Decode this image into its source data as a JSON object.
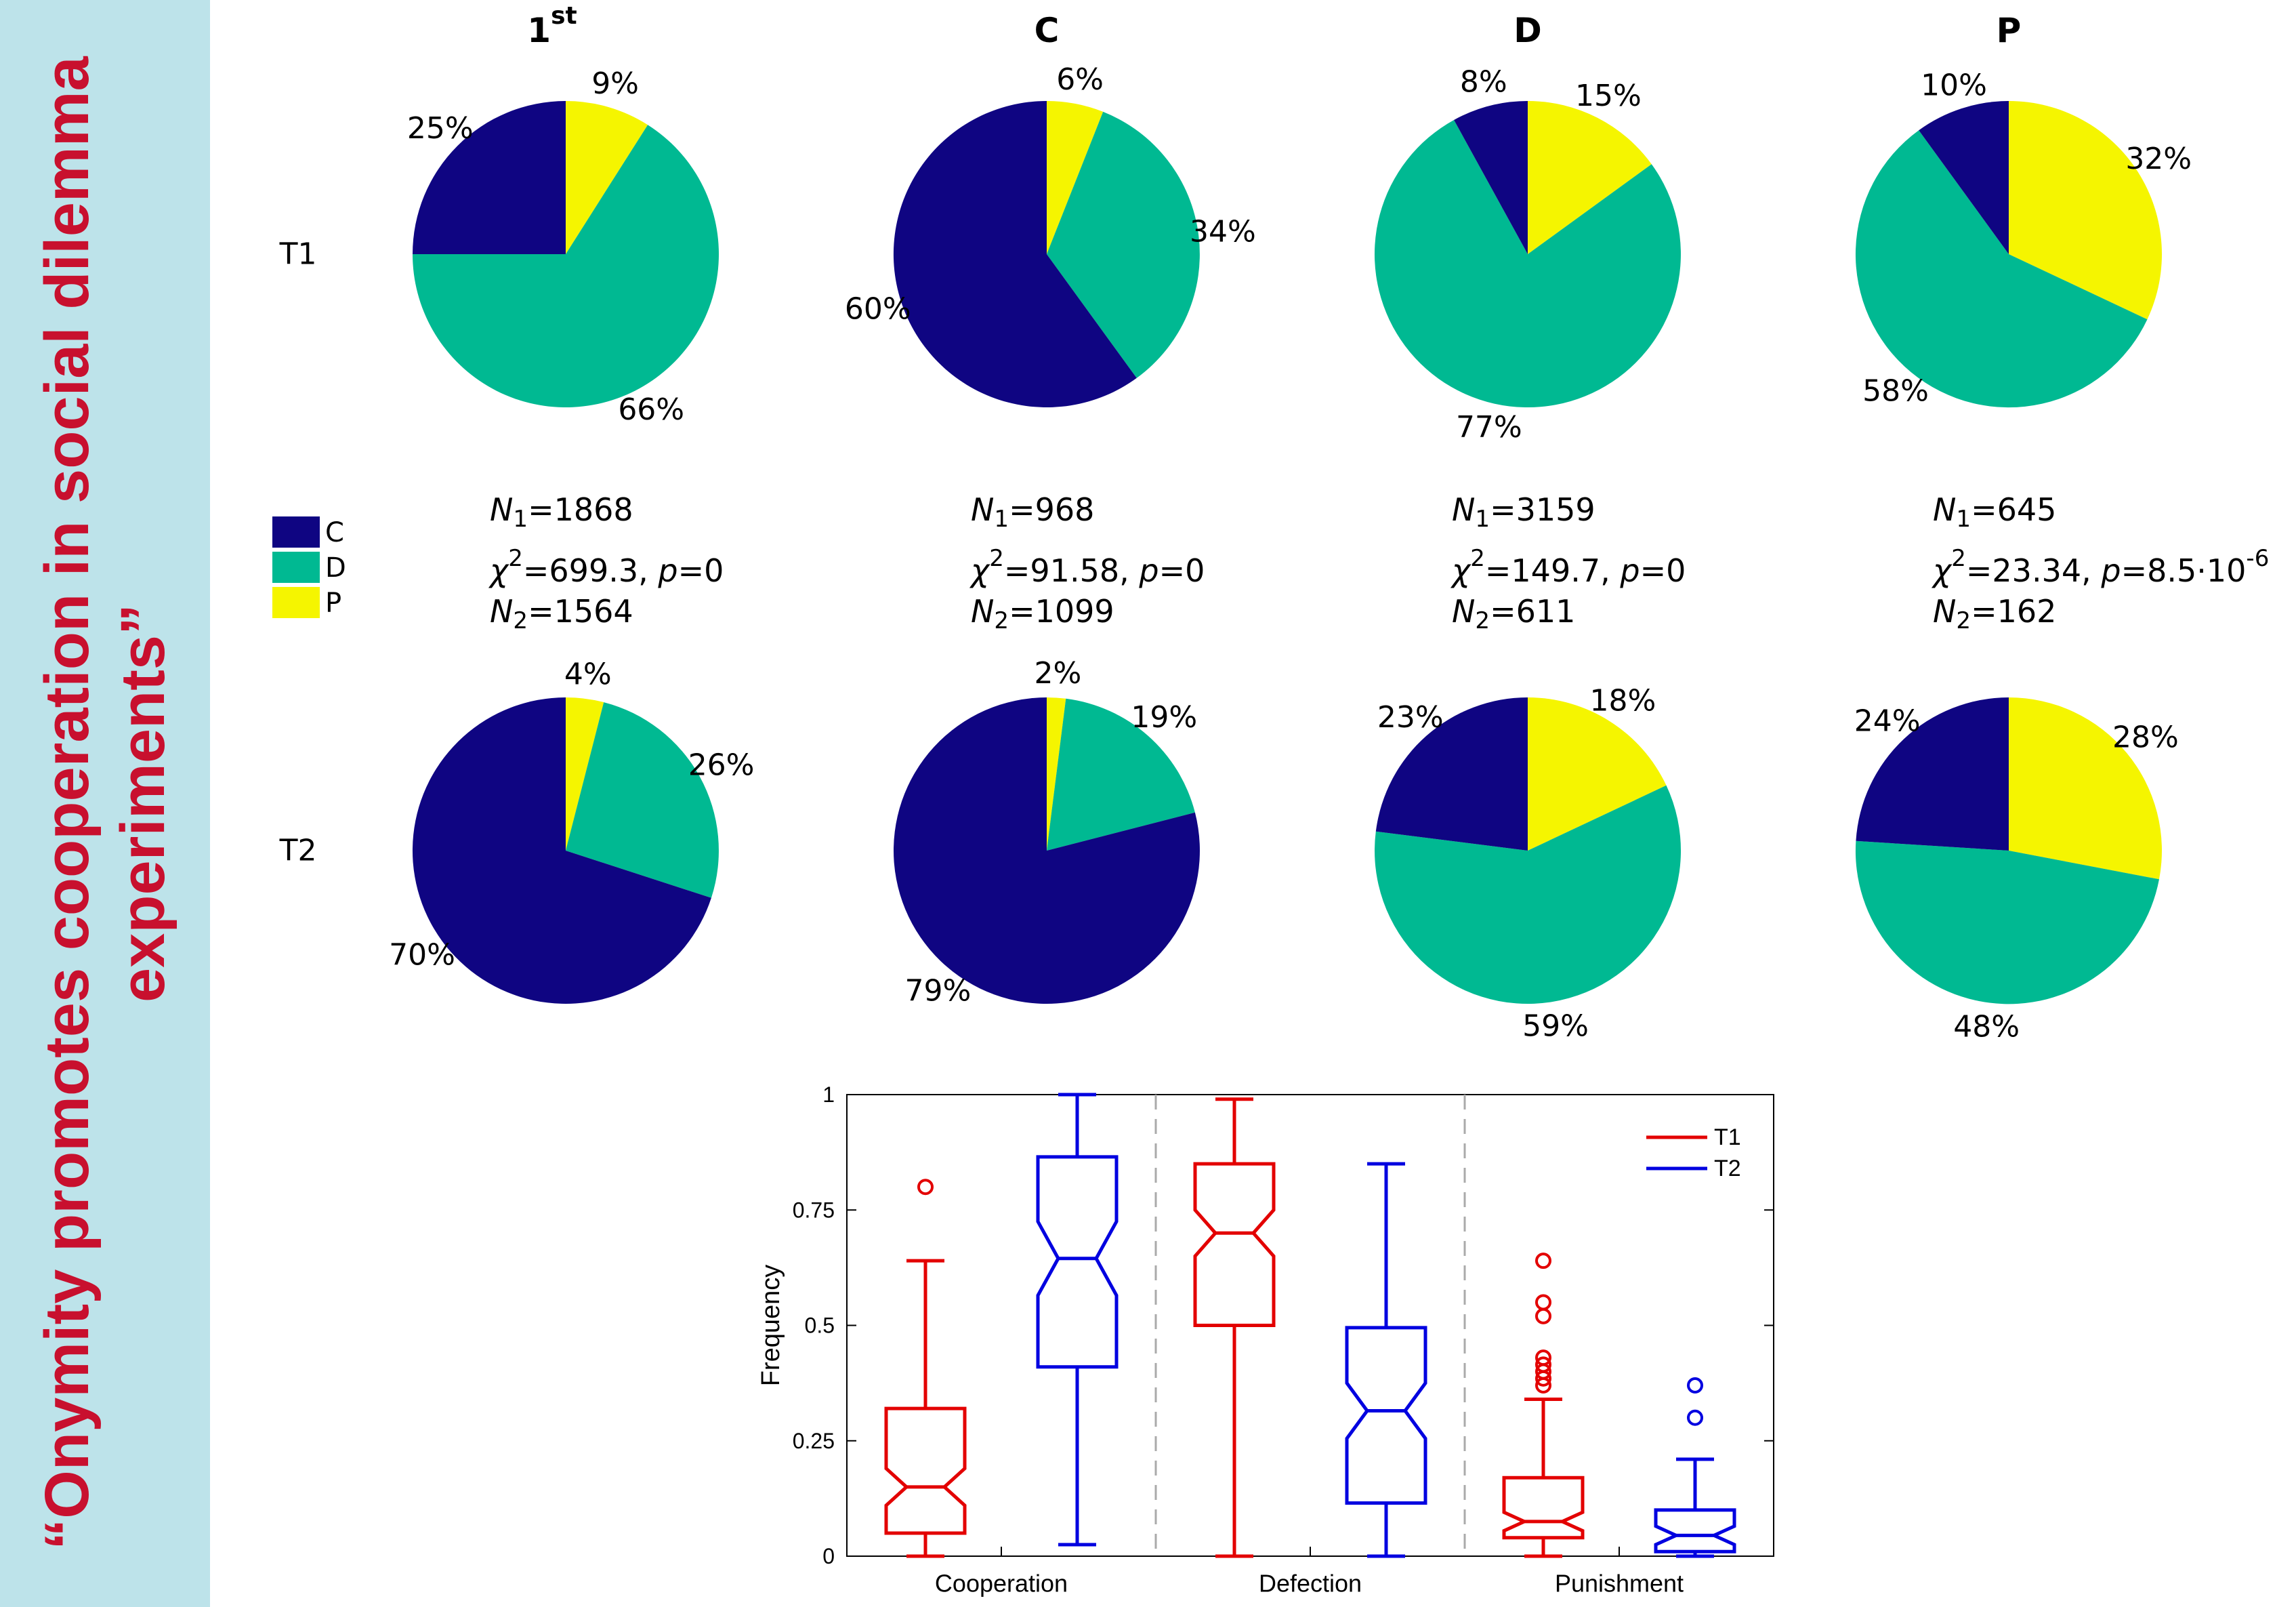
{
  "sidebar": {
    "title_line1": "“Onymity promotes cooperation in social dilemma",
    "title_line2": "experiments”",
    "color": "#c8102e"
  },
  "colors": {
    "C": "#0f0582",
    "D": "#00b992",
    "P": "#f5f500",
    "T1": "#e30000",
    "T2": "#0000e0"
  },
  "chart_data": [
    {
      "type": "pie",
      "row_labels": [
        "T1",
        "T2"
      ],
      "column_titles": [
        "1",
        "C",
        "D",
        "P"
      ],
      "first_column_superscript": "st",
      "legend": {
        "entries": [
          "C",
          "D",
          "P"
        ],
        "placement": "left"
      },
      "panels": [
        {
          "column": "1st",
          "row": "T1",
          "slices": [
            {
              "name": "C",
              "value": 25,
              "label": "25%"
            },
            {
              "name": "D",
              "value": 66,
              "label": "66%"
            },
            {
              "name": "P",
              "value": 9,
              "label": "9%"
            }
          ]
        },
        {
          "column": "C",
          "row": "T1",
          "slices": [
            {
              "name": "C",
              "value": 60,
              "label": "60%"
            },
            {
              "name": "D",
              "value": 34,
              "label": "34%"
            },
            {
              "name": "P",
              "value": 6,
              "label": "6%"
            }
          ]
        },
        {
          "column": "D",
          "row": "T1",
          "slices": [
            {
              "name": "C",
              "value": 8,
              "label": "8%"
            },
            {
              "name": "D",
              "value": 77,
              "label": "77%"
            },
            {
              "name": "P",
              "value": 15,
              "label": "15%"
            }
          ]
        },
        {
          "column": "P",
          "row": "T1",
          "slices": [
            {
              "name": "C",
              "value": 10,
              "label": "10%"
            },
            {
              "name": "D",
              "value": 58,
              "label": "58%"
            },
            {
              "name": "P",
              "value": 32,
              "label": "32%"
            }
          ]
        },
        {
          "column": "1st",
          "row": "T2",
          "slices": [
            {
              "name": "C",
              "value": 70,
              "label": "70%"
            },
            {
              "name": "D",
              "value": 26,
              "label": "26%"
            },
            {
              "name": "P",
              "value": 4,
              "label": "4%"
            }
          ]
        },
        {
          "column": "C",
          "row": "T2",
          "slices": [
            {
              "name": "C",
              "value": 79,
              "label": "79%"
            },
            {
              "name": "D",
              "value": 19,
              "label": "19%"
            },
            {
              "name": "P",
              "value": 2,
              "label": "2%"
            }
          ]
        },
        {
          "column": "D",
          "row": "T2",
          "slices": [
            {
              "name": "C",
              "value": 23,
              "label": "23%"
            },
            {
              "name": "D",
              "value": 59,
              "label": "59%"
            },
            {
              "name": "P",
              "value": 18,
              "label": "18%"
            }
          ]
        },
        {
          "column": "P",
          "row": "T2",
          "slices": [
            {
              "name": "C",
              "value": 24,
              "label": "24%"
            },
            {
              "name": "D",
              "value": 48,
              "label": "48%"
            },
            {
              "name": "P",
              "value": 28,
              "label": "28%"
            }
          ]
        }
      ],
      "stats": [
        {
          "column": "1st",
          "N1": "1868",
          "chi2": "699.3",
          "p": "0",
          "N2": "1564"
        },
        {
          "column": "C",
          "N1": "968",
          "chi2": "91.58",
          "p": "0",
          "N2": "1099"
        },
        {
          "column": "D",
          "N1": "3159",
          "chi2": "149.7",
          "p": "0",
          "N2": "611"
        },
        {
          "column": "P",
          "N1": "645",
          "chi2": "23.34",
          "p": "8.5·10",
          "p_exp": "-6",
          "N2": "162"
        }
      ]
    },
    {
      "type": "box",
      "ylabel": "Frequency",
      "ylim": [
        0,
        1
      ],
      "yticks": [
        {
          "value": 0,
          "label": "0"
        },
        {
          "value": 0.25,
          "label": "0.25"
        },
        {
          "value": 0.5,
          "label": "0.5"
        },
        {
          "value": 0.75,
          "label": "0.75"
        },
        {
          "value": 1,
          "label": "1"
        }
      ],
      "categories": [
        "Cooperation",
        "Defection",
        "Punishment"
      ],
      "legend": {
        "entries": [
          "T1",
          "T2"
        ],
        "placement": "top-right"
      },
      "series": [
        {
          "name": "T1",
          "boxes": [
            {
              "category": "Cooperation",
              "whisker_low": 0,
              "q1": 0.05,
              "median": 0.15,
              "q3": 0.32,
              "whisker_high": 0.64,
              "notch": 0.04,
              "outliers": [
                0.8
              ]
            },
            {
              "category": "Defection",
              "whisker_low": 0,
              "q1": 0.5,
              "median": 0.7,
              "q3": 0.85,
              "whisker_high": 0.99,
              "notch": 0.05,
              "outliers": []
            },
            {
              "category": "Punishment",
              "whisker_low": 0,
              "q1": 0.04,
              "median": 0.075,
              "q3": 0.17,
              "whisker_high": 0.34,
              "notch": 0.02,
              "outliers": [
                0.37,
                0.385,
                0.4,
                0.415,
                0.43,
                0.52,
                0.55,
                0.64
              ]
            }
          ]
        },
        {
          "name": "T2",
          "boxes": [
            {
              "category": "Cooperation",
              "whisker_low": 0.025,
              "q1": 0.41,
              "median": 0.645,
              "q3": 0.865,
              "whisker_high": 1,
              "notch": 0.08,
              "outliers": []
            },
            {
              "category": "Defection",
              "whisker_low": 0,
              "q1": 0.115,
              "median": 0.315,
              "q3": 0.495,
              "whisker_high": 0.85,
              "notch": 0.06,
              "outliers": []
            },
            {
              "category": "Punishment",
              "whisker_low": 0,
              "q1": 0.01,
              "median": 0.045,
              "q3": 0.1,
              "whisker_high": 0.21,
              "notch": 0.02,
              "outliers": [
                0.3,
                0.37
              ]
            }
          ]
        }
      ]
    }
  ]
}
